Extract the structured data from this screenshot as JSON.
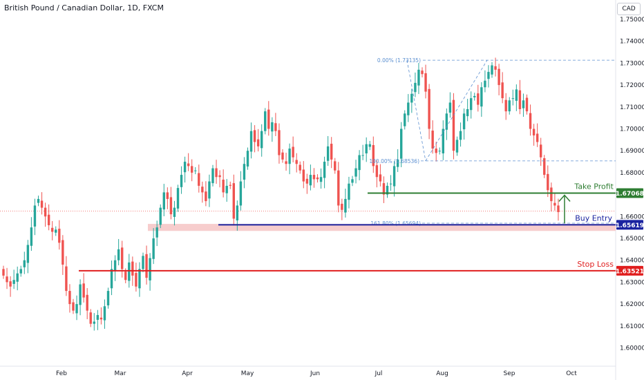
{
  "header": {
    "title": "British Pound / Canadian Dollar, 1D, FXCM",
    "currency": "CAD"
  },
  "colors": {
    "up": "#26a69a",
    "down": "#ef5350",
    "take_profit": "#2e7d32",
    "buy_entry": "#1a23a0",
    "stop_loss": "#e01e1e",
    "fib": "#5b8fd0",
    "support_zone": "#f6c4c4"
  },
  "chart_data": {
    "type": "candlestick",
    "title": "British Pound / Canadian Dollar, 1D, FXCM",
    "ylim": [
      1.5965,
      1.7555
    ],
    "y_ticks": [
      "1.75000",
      "1.74000",
      "1.73000",
      "1.72000",
      "1.71000",
      "1.70000",
      "1.69000",
      "1.68000",
      "1.66000",
      "1.65000",
      "1.64000",
      "1.63000",
      "1.62000",
      "1.61000",
      "1.60000"
    ],
    "x_ticks": [
      "Feb",
      "Mar",
      "Apr",
      "May",
      "Jun",
      "Jul",
      "Aug",
      "Sep",
      "Oct"
    ],
    "levels": [
      {
        "name": "Take Profit",
        "price": 1.67068,
        "label": "1.67068"
      },
      {
        "name": "Buy Entry",
        "price": 1.65619,
        "label": "1.65619"
      },
      {
        "name": "Stop Loss",
        "price": 1.63521,
        "label": "1.63521"
      }
    ],
    "fibonacci": [
      {
        "label": "0.00% (1.73135)",
        "price": 1.73135
      },
      {
        "label": "100.00% (1.68536)",
        "price": 1.68536
      },
      {
        "label": "161.80% (1.65694)",
        "price": 1.65694
      }
    ],
    "support_zone": [
      1.6534,
      1.6566
    ],
    "current_price": 1.6625,
    "closes": [
      1.633,
      1.63,
      1.628,
      1.631,
      1.634,
      1.636,
      1.64,
      1.647,
      1.655,
      1.665,
      1.668,
      1.664,
      1.66,
      1.656,
      1.653,
      1.654,
      1.648,
      1.638,
      1.626,
      1.62,
      1.617,
      1.62,
      1.629,
      1.623,
      1.617,
      1.611,
      1.612,
      1.615,
      1.613,
      1.619,
      1.626,
      1.636,
      1.64,
      1.645,
      1.636,
      1.631,
      1.639,
      1.633,
      1.628,
      1.636,
      1.642,
      1.632,
      1.641,
      1.65,
      1.655,
      1.664,
      1.671,
      1.668,
      1.661,
      1.664,
      1.673,
      1.679,
      1.685,
      1.683,
      1.68,
      1.681,
      1.674,
      1.671,
      1.667,
      1.676,
      1.682,
      1.678,
      1.678,
      1.671,
      1.674,
      1.674,
      1.659,
      1.665,
      1.676,
      1.684,
      1.69,
      1.699,
      1.694,
      1.692,
      1.699,
      1.708,
      1.7,
      1.703,
      1.699,
      1.688,
      1.686,
      1.684,
      1.691,
      1.687,
      1.684,
      1.681,
      1.676,
      1.675,
      1.679,
      1.677,
      1.677,
      1.678,
      1.685,
      1.692,
      1.686,
      1.681,
      1.665,
      1.663,
      1.668,
      1.675,
      1.677,
      1.682,
      1.688,
      1.688,
      1.693,
      1.693,
      1.683,
      1.678,
      1.676,
      1.67,
      1.674,
      1.675,
      1.683,
      1.686,
      1.7,
      1.707,
      1.712,
      1.716,
      1.721,
      1.727,
      1.725,
      1.717,
      1.7,
      1.691,
      1.689,
      1.69,
      1.7,
      1.707,
      1.712,
      1.69,
      1.695,
      1.699,
      1.707,
      1.709,
      1.714,
      1.715,
      1.711,
      1.719,
      1.722,
      1.726,
      1.729,
      1.727,
      1.72,
      1.714,
      1.708,
      1.713,
      1.714,
      1.718,
      1.709,
      1.713,
      1.708,
      1.7,
      1.697,
      1.694,
      1.687,
      1.679,
      1.672,
      1.667,
      1.665,
      1.662
    ]
  }
}
